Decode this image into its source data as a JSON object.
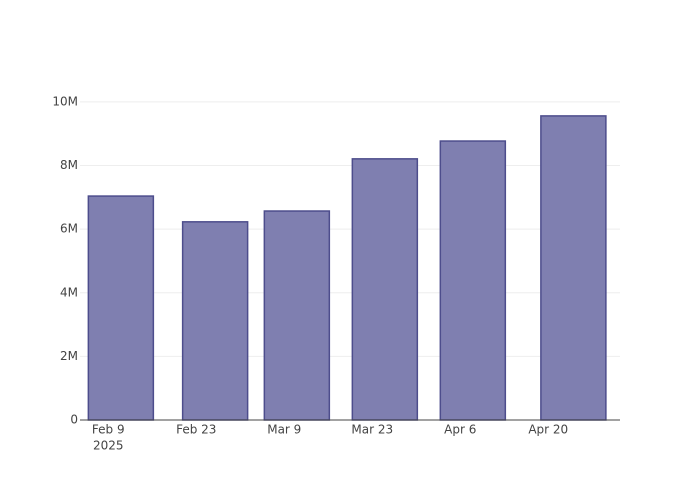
{
  "chart_data": {
    "type": "bar",
    "x": [
      "2025-02-11",
      "2025-02-26",
      "2025-03-11",
      "2025-03-25",
      "2025-04-08",
      "2025-04-24"
    ],
    "values": [
      7040000,
      6230000,
      6570000,
      8210000,
      8770000,
      9560000
    ],
    "color": "#7f7fb0",
    "edge_color": "#4d4d8c",
    "xlim": [
      "2025-02-04T12:00",
      "2025-05-01T10:00"
    ],
    "xticks": [
      {
        "value": "2025-02-09",
        "label": "Feb 9"
      },
      {
        "value": "2025-02-23",
        "label": "Feb 23"
      },
      {
        "value": "2025-03-09",
        "label": "Mar 9"
      },
      {
        "value": "2025-03-23",
        "label": "Mar 23"
      },
      {
        "value": "2025-04-06",
        "label": "Apr 6"
      },
      {
        "value": "2025-04-20",
        "label": "Apr 20"
      }
    ],
    "x_year": "2025",
    "ylim": [
      0,
      10060000
    ],
    "yticks": [
      0,
      {
        "value": 2000000,
        "label": "2M"
      },
      {
        "value": 4000000,
        "label": "4M"
      },
      {
        "value": 6000000,
        "label": "6M"
      },
      {
        "value": 8000000,
        "label": "8M"
      },
      {
        "value": 10000000,
        "label": "10M"
      }
    ],
    "grid": true
  }
}
